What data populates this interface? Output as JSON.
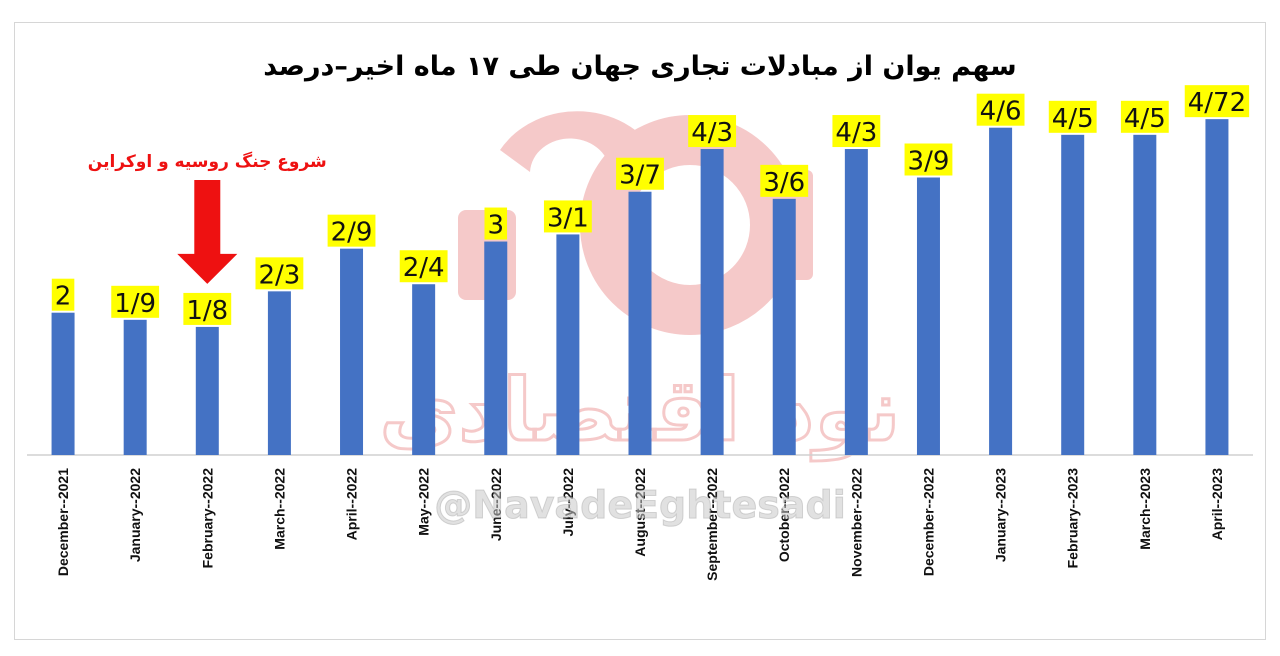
{
  "chart_data": {
    "type": "bar",
    "title": "سهم یوان از مبادلات تجاری جهان طی ۱۷ ماه اخیر–درصد",
    "categories": [
      "December--2021",
      "January--2022",
      "February--2022",
      "March--2022",
      "April--2022",
      "May--2022",
      "June--2022",
      "July--2022",
      "August--2022",
      "September--2022",
      "October--2022",
      "November--2022",
      "December--2022",
      "January--2023",
      "February--2023",
      "March--2023",
      "April--2023"
    ],
    "values": [
      2,
      1.9,
      1.8,
      2.3,
      2.9,
      2.4,
      3,
      3.1,
      3.7,
      4.3,
      3.6,
      4.3,
      3.9,
      4.6,
      4.5,
      4.5,
      4.72
    ],
    "data_labels": [
      "2",
      "1/9",
      "1/8",
      "2/3",
      "2/9",
      "2/4",
      "3",
      "3/1",
      "3/7",
      "4/3",
      "3/6",
      "4/3",
      "3/9",
      "4/6",
      "4/5",
      "4/5",
      "4/72"
    ],
    "xlabel": "",
    "ylabel": "",
    "ylim": [
      0,
      5.2
    ],
    "grid": false,
    "bar_color": "#4472c4",
    "label_bg_color": "#ffff00",
    "annotation": {
      "text": "شروع جنگ روسیه و اوکراین",
      "category": "February--2022",
      "color": "#ee1111"
    }
  },
  "watermark": {
    "text": "@NavadeEghtesadi",
    "logo_text": "نود اقتصادی",
    "logo_color": "#f2b8b8"
  }
}
